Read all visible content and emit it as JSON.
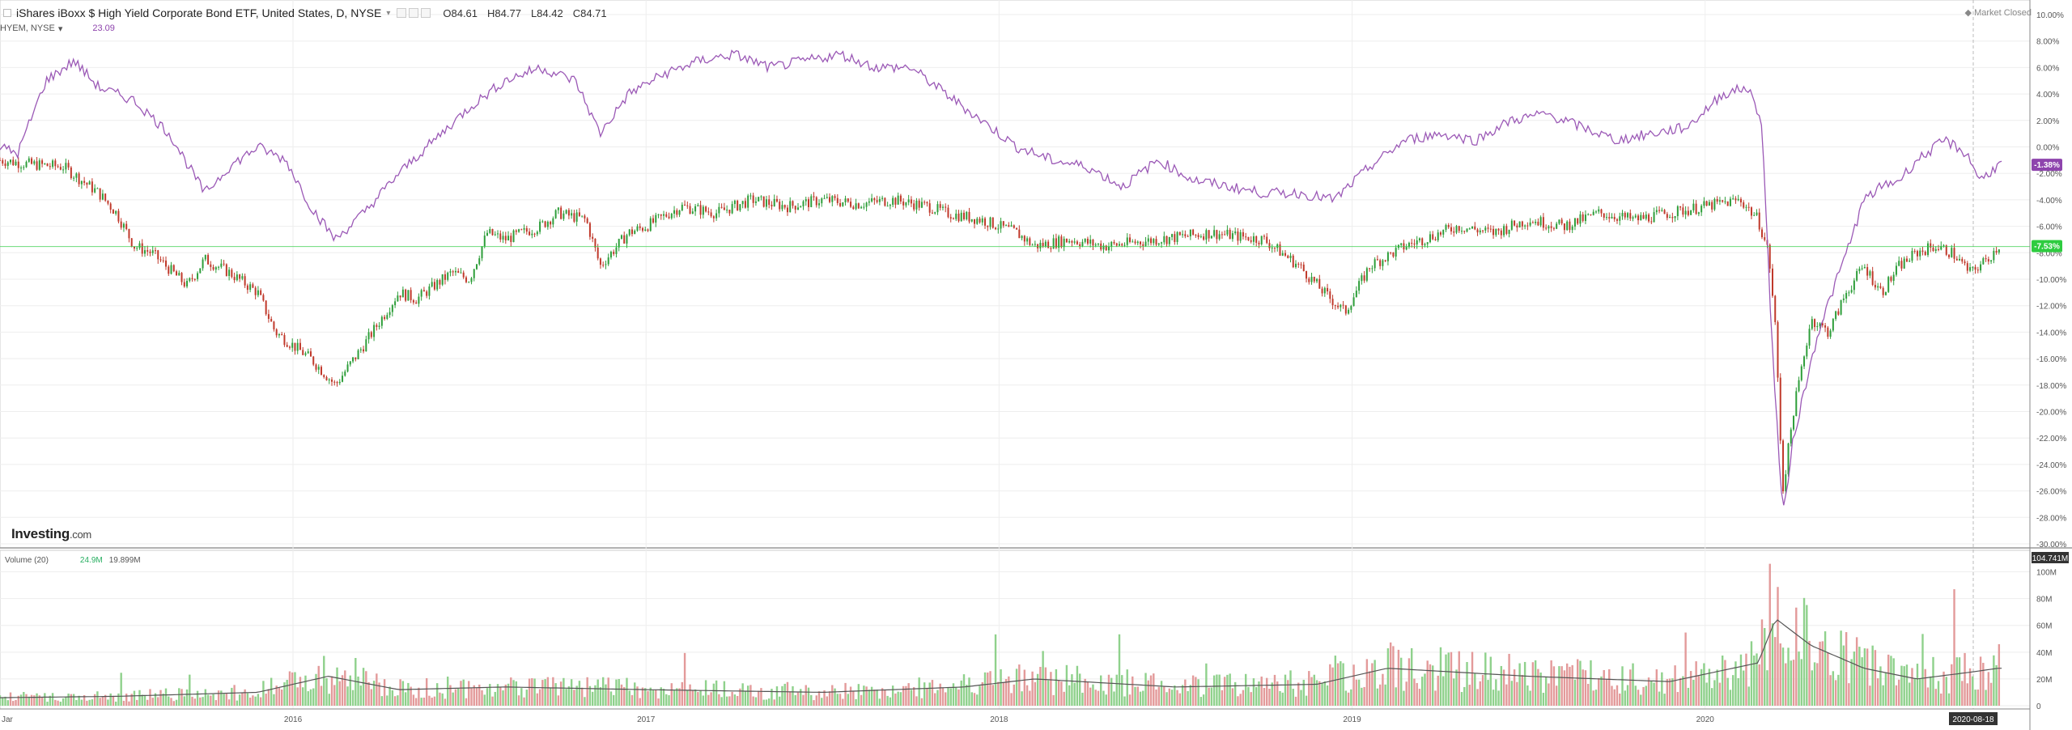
{
  "header": {
    "title": "iShares iBoxx $ High Yield Corporate Bond ETF, United States, D, NYSE",
    "open": "O84.61",
    "high": "H84.77",
    "low": "L84.42",
    "close": "C84.71",
    "comparison_label": "HYEM, NYSE",
    "comparison_value": "23.09",
    "market_status": "Market Closed"
  },
  "volume_header": {
    "label": "Volume (20)",
    "value": "24.9M",
    "ma_value": "19.899M"
  },
  "logo": {
    "brand": "Investing",
    "suffix": ".com"
  },
  "colors": {
    "up": "#2e9e3a",
    "down": "#c0392b",
    "hyem": "#9b59b6",
    "vol_up": "#8fd18c",
    "vol_down": "#e39a9a",
    "grid": "#eeeeee",
    "axis": "#555555"
  },
  "chart_data": [
    {
      "type": "candlestick",
      "series": [
        {
          "name": "iShares iBoxx $ High Yield Corporate Bond ETF",
          "color": "#2e9e3a",
          "points": [
            [
              2015.17,
              -1.0
            ],
            [
              2015.25,
              -1.3
            ],
            [
              2015.35,
              -1.5
            ],
            [
              2015.45,
              -3.5
            ],
            [
              2015.5,
              -5.0
            ],
            [
              2015.55,
              -7.5
            ],
            [
              2015.6,
              -8.0
            ],
            [
              2015.7,
              -10.5
            ],
            [
              2015.75,
              -8.5
            ],
            [
              2015.82,
              -9.5
            ],
            [
              2015.9,
              -11.0
            ],
            [
              2015.95,
              -14.0
            ],
            [
              2016.05,
              -16.0
            ],
            [
              2016.12,
              -18.0
            ],
            [
              2016.2,
              -15.0
            ],
            [
              2016.25,
              -13.0
            ],
            [
              2016.3,
              -11.0
            ],
            [
              2016.35,
              -11.5
            ],
            [
              2016.45,
              -9.5
            ],
            [
              2016.5,
              -10.0
            ],
            [
              2016.55,
              -6.5
            ],
            [
              2016.6,
              -7.0
            ],
            [
              2016.7,
              -6.0
            ],
            [
              2016.75,
              -5.0
            ],
            [
              2016.83,
              -5.5
            ],
            [
              2016.87,
              -9.0
            ],
            [
              2016.95,
              -6.5
            ],
            [
              2017.0,
              -6.0
            ],
            [
              2017.1,
              -4.5
            ],
            [
              2017.2,
              -5.0
            ],
            [
              2017.3,
              -4.0
            ],
            [
              2017.4,
              -4.5
            ],
            [
              2017.5,
              -4.0
            ],
            [
              2017.6,
              -4.3
            ],
            [
              2017.7,
              -4.0
            ],
            [
              2017.8,
              -4.5
            ],
            [
              2017.85,
              -5.0
            ],
            [
              2017.95,
              -5.5
            ],
            [
              2018.05,
              -6.5
            ],
            [
              2018.1,
              -7.5
            ],
            [
              2018.2,
              -7.0
            ],
            [
              2018.3,
              -7.5
            ],
            [
              2018.45,
              -7.0
            ],
            [
              2018.6,
              -6.5
            ],
            [
              2018.75,
              -7.0
            ],
            [
              2018.85,
              -9.0
            ],
            [
              2018.92,
              -11.0
            ],
            [
              2018.98,
              -12.5
            ],
            [
              2019.05,
              -9.0
            ],
            [
              2019.15,
              -7.5
            ],
            [
              2019.3,
              -6.0
            ],
            [
              2019.4,
              -6.5
            ],
            [
              2019.5,
              -5.5
            ],
            [
              2019.6,
              -6.0
            ],
            [
              2019.7,
              -5.0
            ],
            [
              2019.8,
              -5.5
            ],
            [
              2019.9,
              -5.0
            ],
            [
              2020.0,
              -4.5
            ],
            [
              2020.1,
              -4.0
            ],
            [
              2020.15,
              -5.5
            ],
            [
              2020.18,
              -8.0
            ],
            [
              2020.2,
              -14.0
            ],
            [
              2020.22,
              -26.0
            ],
            [
              2020.25,
              -20.0
            ],
            [
              2020.3,
              -13.0
            ],
            [
              2020.35,
              -14.0
            ],
            [
              2020.4,
              -11.0
            ],
            [
              2020.45,
              -9.0
            ],
            [
              2020.5,
              -11.0
            ],
            [
              2020.55,
              -9.0
            ],
            [
              2020.6,
              -8.0
            ],
            [
              2020.65,
              -7.5
            ],
            [
              2020.7,
              -8.0
            ],
            [
              2020.75,
              -9.5
            ],
            [
              2020.8,
              -8.5
            ],
            [
              2020.83,
              -7.5
            ]
          ]
        },
        {
          "name": "HYEM",
          "color": "#9b59b6",
          "points": [
            [
              2015.17,
              0.0
            ],
            [
              2015.22,
              -0.5
            ],
            [
              2015.3,
              5.0
            ],
            [
              2015.38,
              6.5
            ],
            [
              2015.45,
              4.5
            ],
            [
              2015.55,
              3.5
            ],
            [
              2015.65,
              1.0
            ],
            [
              2015.75,
              -3.5
            ],
            [
              2015.82,
              -1.5
            ],
            [
              2015.9,
              0.0
            ],
            [
              2015.98,
              -1.0
            ],
            [
              2016.05,
              -4.5
            ],
            [
              2016.12,
              -7.0
            ],
            [
              2016.2,
              -5.0
            ],
            [
              2016.3,
              -2.0
            ],
            [
              2016.4,
              0.5
            ],
            [
              2016.5,
              3.0
            ],
            [
              2016.6,
              5.0
            ],
            [
              2016.7,
              6.0
            ],
            [
              2016.8,
              5.0
            ],
            [
              2016.87,
              1.0
            ],
            [
              2016.95,
              4.0
            ],
            [
              2017.05,
              5.5
            ],
            [
              2017.15,
              6.5
            ],
            [
              2017.25,
              7.0
            ],
            [
              2017.35,
              6.0
            ],
            [
              2017.45,
              6.5
            ],
            [
              2017.55,
              7.0
            ],
            [
              2017.65,
              6.0
            ],
            [
              2017.75,
              6.0
            ],
            [
              2017.85,
              4.0
            ],
            [
              2017.95,
              2.0
            ],
            [
              2018.05,
              0.0
            ],
            [
              2018.15,
              -1.0
            ],
            [
              2018.25,
              -1.5
            ],
            [
              2018.35,
              -3.0
            ],
            [
              2018.45,
              -1.0
            ],
            [
              2018.55,
              -2.5
            ],
            [
              2018.65,
              -3.0
            ],
            [
              2018.75,
              -3.5
            ],
            [
              2018.85,
              -3.5
            ],
            [
              2018.95,
              -4.0
            ],
            [
              2019.05,
              -1.5
            ],
            [
              2019.15,
              0.5
            ],
            [
              2019.25,
              1.0
            ],
            [
              2019.35,
              0.5
            ],
            [
              2019.45,
              2.0
            ],
            [
              2019.55,
              2.5
            ],
            [
              2019.65,
              1.5
            ],
            [
              2019.75,
              0.5
            ],
            [
              2019.85,
              1.0
            ],
            [
              2019.95,
              1.5
            ],
            [
              2020.05,
              4.0
            ],
            [
              2020.12,
              4.5
            ],
            [
              2020.16,
              2.0
            ],
            [
              2020.19,
              -15.0
            ],
            [
              2020.22,
              -28.0
            ],
            [
              2020.25,
              -22.0
            ],
            [
              2020.32,
              -14.0
            ],
            [
              2020.4,
              -8.0
            ],
            [
              2020.45,
              -4.0
            ],
            [
              2020.5,
              -3.0
            ],
            [
              2020.55,
              -2.5
            ],
            [
              2020.6,
              -1.0
            ],
            [
              2020.68,
              0.5
            ],
            [
              2020.74,
              -0.5
            ],
            [
              2020.78,
              -2.5
            ],
            [
              2020.83,
              -1.38
            ]
          ]
        }
      ],
      "x_ticks": [
        "2016",
        "2017",
        "2018",
        "2019",
        "2020"
      ],
      "first_label": "Jar",
      "y_ticks": [
        "10.00%",
        "8.00%",
        "6.00%",
        "4.00%",
        "2.00%",
        "0.00%",
        "-2.00%",
        "-4.00%",
        "-6.00%",
        "-8.00%",
        "-10.00%",
        "-12.00%",
        "-14.00%",
        "-16.00%",
        "-18.00%",
        "-20.00%",
        "-22.00%",
        "-24.00%",
        "-26.00%",
        "-28.00%",
        "-30.00%"
      ],
      "ylim": [
        -30,
        10
      ],
      "xlim": [
        2015.17,
        2020.92
      ],
      "current_lines": [
        {
          "label": "-7.53%",
          "value": -7.53,
          "color": "#2ecc40"
        },
        {
          "label": "-1.38%",
          "value": -1.38,
          "color": "#8e44ad"
        }
      ],
      "grid": true
    },
    {
      "type": "bar",
      "title": "Volume (20)",
      "y_ticks": [
        "100M",
        "80M",
        "60M",
        "40M",
        "20M",
        "0"
      ],
      "ylim": [
        0,
        110
      ],
      "last_label": "104.741M",
      "date_label": "2020-08-18",
      "ma_points": [
        [
          2015.17,
          6
        ],
        [
          2015.5,
          7
        ],
        [
          2015.9,
          10
        ],
        [
          2016.1,
          22
        ],
        [
          2016.3,
          12
        ],
        [
          2016.6,
          14
        ],
        [
          2017.0,
          12
        ],
        [
          2017.5,
          10
        ],
        [
          2017.9,
          14
        ],
        [
          2018.1,
          20
        ],
        [
          2018.5,
          14
        ],
        [
          2018.9,
          16
        ],
        [
          2019.1,
          28
        ],
        [
          2019.5,
          22
        ],
        [
          2019.9,
          18
        ],
        [
          2020.15,
          32
        ],
        [
          2020.2,
          65
        ],
        [
          2020.3,
          45
        ],
        [
          2020.45,
          28
        ],
        [
          2020.6,
          20
        ],
        [
          2020.75,
          25
        ],
        [
          2020.83,
          28
        ]
      ]
    }
  ]
}
